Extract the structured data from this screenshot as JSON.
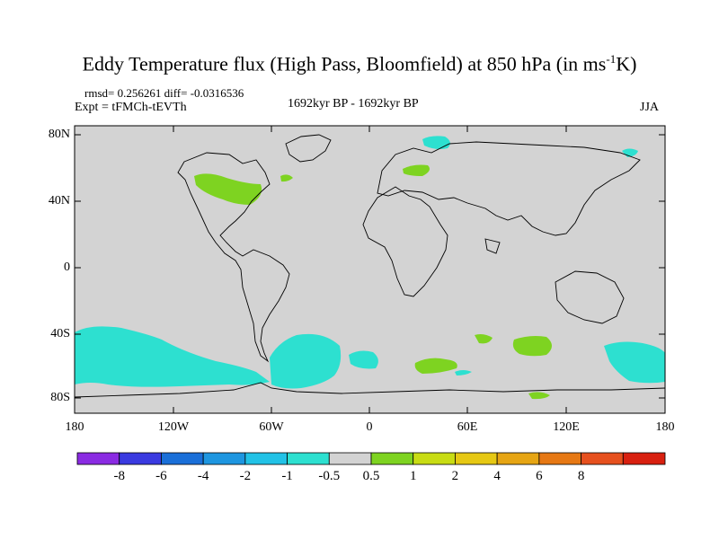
{
  "title": {
    "main": "Eddy Temperature flux (High Pass, Bloomfield) at 850 hPa (in ms",
    "sup": "-1",
    "unit_end": "K)"
  },
  "stats": "rmsd= 0.256261 diff= -0.0316536",
  "experiment": "Expt = tFMCh-tEVTh",
  "period": "1692kyr BP - 1692kyr BP",
  "season": "JJA",
  "lat_labels": [
    "80N",
    "40N",
    "0",
    "40S",
    "80S"
  ],
  "lon_labels": [
    "180",
    "120W",
    "60W",
    "0",
    "60E",
    "120E",
    "180"
  ],
  "colorbar": {
    "colors": [
      "#8a2be2",
      "#3a3ae0",
      "#1a6fd8",
      "#1e96e0",
      "#22c2e6",
      "#2de0d0",
      "#d3d3d3",
      "#7ed321",
      "#c8dc14",
      "#e6c814",
      "#e6a514",
      "#e67814",
      "#e6501e",
      "#d82010"
    ],
    "labels": [
      "-8",
      "-6",
      "-4",
      "-2",
      "-1",
      "-0.5",
      "0.5",
      "1",
      "2",
      "4",
      "6",
      "8"
    ]
  },
  "colors": {
    "land_background": "#d3d3d3",
    "negative_shade": "#2de0d0",
    "positive_shade": "#7ed321"
  }
}
